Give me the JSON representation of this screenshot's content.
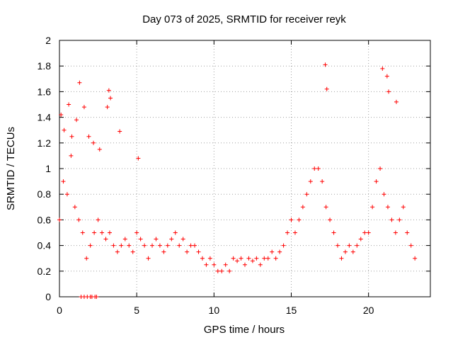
{
  "chart_data": {
    "type": "scatter",
    "title": "Day 073 of 2025, SRMTID for receiver reyk",
    "xlabel": "GPS time / hours",
    "ylabel": "SRMTID / TECUs",
    "xlim": [
      0,
      24
    ],
    "ylim": [
      0,
      2
    ],
    "xticks": [
      0,
      5,
      10,
      15,
      20
    ],
    "xtick_labels": [
      "0",
      "5",
      "10",
      "15",
      "20"
    ],
    "yticks": [
      0,
      0.2,
      0.4,
      0.6,
      0.8,
      1,
      1.2,
      1.4,
      1.6,
      1.8,
      2
    ],
    "ytick_labels": [
      "0",
      "0.2",
      "0.4",
      "0.6",
      "0.8",
      "1",
      "1.2",
      "1.4",
      "1.6",
      "1.8",
      "2"
    ],
    "grid": true,
    "marker": "+",
    "color": "#ff0000",
    "series": [
      {
        "name": "SRMTID",
        "x": [
          0.0,
          0.25,
          0.5,
          0.75,
          1.0,
          1.25,
          1.5,
          1.75,
          2.0,
          2.25,
          2.5,
          2.75,
          3.0,
          3.25,
          3.5,
          3.75,
          4.0,
          4.25,
          4.5,
          4.75,
          5.0,
          5.25,
          5.5,
          5.75,
          6.0,
          6.25,
          6.5,
          6.75,
          7.0,
          7.25,
          7.5,
          7.75,
          8.0,
          8.25,
          8.5,
          8.75,
          9.0,
          9.25,
          9.5,
          9.75,
          10.0,
          10.25,
          10.5,
          10.75,
          11.0,
          11.25,
          11.5,
          11.75,
          12.0,
          12.25,
          12.5,
          12.75,
          13.0,
          13.25,
          13.5,
          13.75,
          14.0,
          14.25,
          14.5,
          14.75,
          15.0,
          15.25,
          15.5,
          15.75,
          16.0,
          16.25,
          16.5,
          16.75,
          17.0,
          17.25,
          17.5,
          17.75,
          18.0,
          18.25,
          18.5,
          18.75,
          19.0,
          19.25,
          19.5,
          19.75,
          20.0,
          20.25,
          20.5,
          20.75,
          21.0,
          21.25,
          21.5,
          21.75,
          22.0,
          22.25,
          22.5,
          22.75,
          23.0,
          0.1,
          0.3,
          0.6,
          0.8,
          1.1,
          1.3,
          1.6,
          1.9,
          2.2,
          2.6,
          3.1,
          3.2,
          3.3,
          3.9,
          5.1,
          17.2,
          17.3,
          20.9,
          21.2,
          21.3,
          21.8,
          1.4,
          1.6,
          1.8,
          2.0,
          2.1,
          2.3,
          2.4
        ],
        "y": [
          0.6,
          0.9,
          0.8,
          1.1,
          0.7,
          0.6,
          0.5,
          0.3,
          0.4,
          0.5,
          0.6,
          0.5,
          0.45,
          0.5,
          0.4,
          0.35,
          0.4,
          0.45,
          0.4,
          0.35,
          0.5,
          0.45,
          0.4,
          0.3,
          0.4,
          0.45,
          0.4,
          0.35,
          0.4,
          0.45,
          0.5,
          0.4,
          0.45,
          0.35,
          0.4,
          0.4,
          0.35,
          0.3,
          0.25,
          0.3,
          0.25,
          0.2,
          0.2,
          0.25,
          0.2,
          0.3,
          0.28,
          0.3,
          0.25,
          0.3,
          0.28,
          0.3,
          0.25,
          0.3,
          0.3,
          0.35,
          0.3,
          0.35,
          0.4,
          0.5,
          0.6,
          0.5,
          0.6,
          0.7,
          0.8,
          0.9,
          1.0,
          1.0,
          0.9,
          0.7,
          0.6,
          0.5,
          0.4,
          0.3,
          0.35,
          0.4,
          0.35,
          0.4,
          0.45,
          0.5,
          0.5,
          0.7,
          0.9,
          1.0,
          0.8,
          0.7,
          0.6,
          0.5,
          0.6,
          0.7,
          0.5,
          0.4,
          0.3,
          1.42,
          1.3,
          1.5,
          1.25,
          1.38,
          1.67,
          1.48,
          1.25,
          1.2,
          1.15,
          1.48,
          1.61,
          1.55,
          1.29,
          1.08,
          1.81,
          1.62,
          1.78,
          1.72,
          1.6,
          1.52,
          0.0,
          0.0,
          0.0,
          0.0,
          0.0,
          0.0,
          0.0
        ]
      }
    ]
  }
}
